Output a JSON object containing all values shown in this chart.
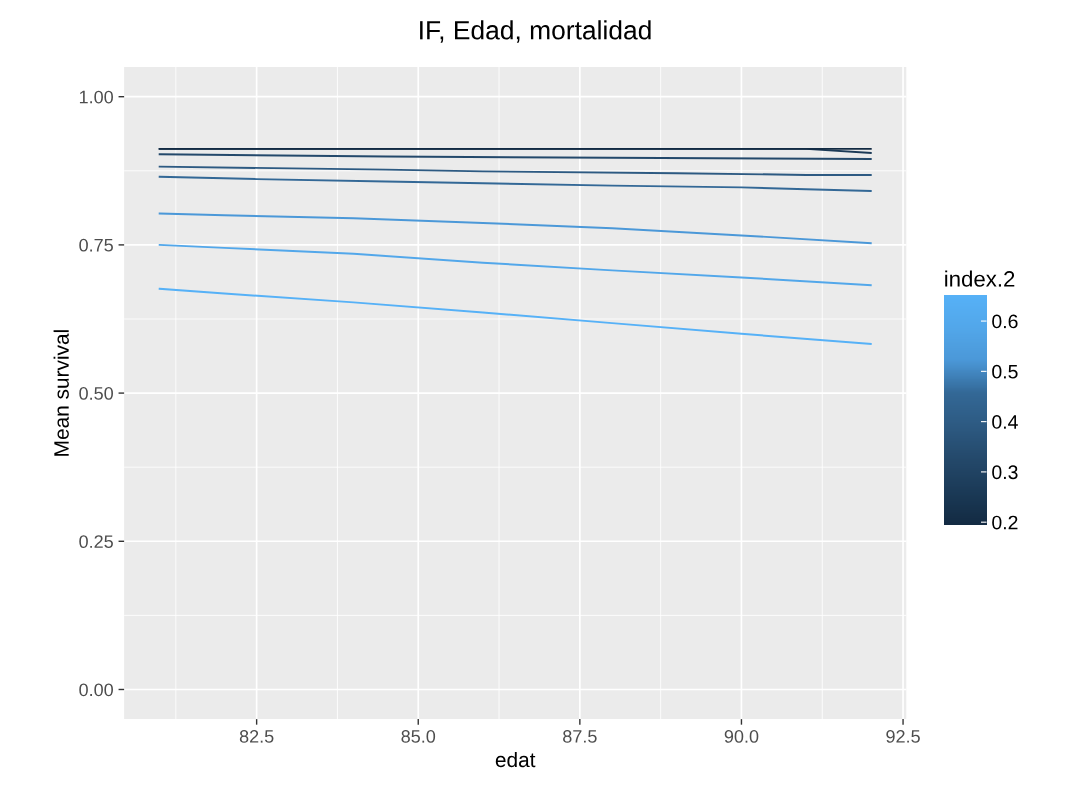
{
  "chart_data": {
    "type": "line",
    "title": "IF, Edad, mortalidad",
    "xlabel": "edat",
    "ylabel": "Mean survival",
    "clabel": "index.2",
    "xlim": [
      80.45,
      92.55
    ],
    "xticks": [
      82.5,
      {
        "value": 85,
        "label": "85.0"
      },
      87.5,
      {
        "value": 90,
        "label": "90.0"
      },
      92.5
    ],
    "ylim": [
      -0.05,
      1.05
    ],
    "yticks": [
      {
        "value": 0,
        "label": "0.00"
      },
      {
        "value": 0.25,
        "label": "0.25"
      },
      {
        "value": 0.5,
        "label": "0.50"
      },
      {
        "value": 0.75,
        "label": "0.75"
      },
      {
        "value": 1,
        "label": "1.00"
      }
    ],
    "clim": [
      0.194,
      0.652
    ],
    "cticks": [
      0.2,
      0.3,
      0.4,
      0.5,
      0.6
    ],
    "grid": true,
    "series": [
      {
        "color": "#132b43",
        "x": [
          81,
          92
        ],
        "values": [
          0.912,
          0.912
        ]
      },
      {
        "color": "#1b3a57",
        "x": [
          81,
          91,
          92
        ],
        "values": [
          0.912,
          0.912,
          0.905
        ]
      },
      {
        "color": "#24496b",
        "x": [
          81,
          84.5,
          92
        ],
        "values": [
          0.903,
          0.899,
          0.895
        ]
      },
      {
        "color": "#2d5a82",
        "x": [
          81,
          84.5,
          86,
          89,
          91,
          92
        ],
        "values": [
          0.882,
          0.877,
          0.874,
          0.871,
          0.868,
          0.868
        ]
      },
      {
        "color": "#336896",
        "x": [
          81,
          82.5,
          84.5,
          86,
          88,
          90,
          91,
          92
        ],
        "values": [
          0.865,
          0.861,
          0.857,
          0.854,
          0.85,
          0.847,
          0.844,
          0.841
        ]
      },
      {
        "color": "#4b98d8",
        "x": [
          81,
          82,
          84,
          86,
          88,
          90,
          92
        ],
        "values": [
          0.803,
          0.8,
          0.795,
          0.787,
          0.778,
          0.766,
          0.753
        ]
      },
      {
        "color": "#52a7ea",
        "x": [
          81,
          82,
          84,
          86,
          88,
          90,
          92
        ],
        "values": [
          0.75,
          0.745,
          0.735,
          0.72,
          0.707,
          0.695,
          0.682
        ]
      },
      {
        "color": "#56b1f7",
        "x": [
          81,
          82,
          84,
          86,
          88,
          90,
          92
        ],
        "values": [
          0.676,
          0.668,
          0.653,
          0.636,
          0.618,
          0.6,
          0.583
        ]
      }
    ]
  }
}
